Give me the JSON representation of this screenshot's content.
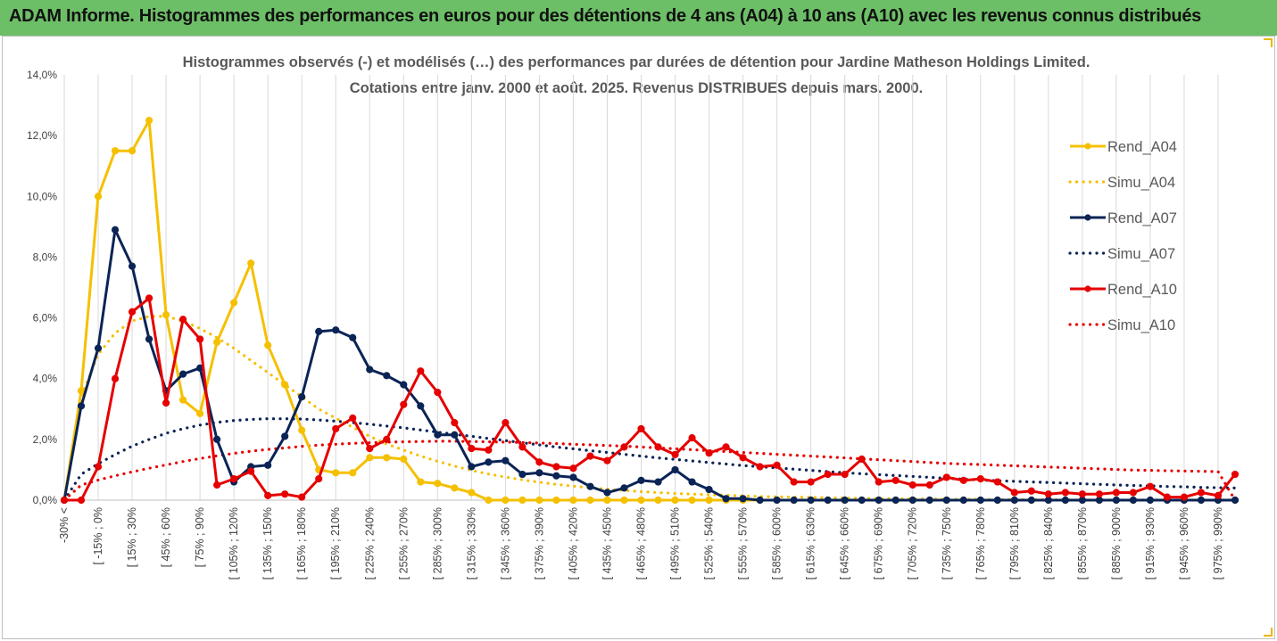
{
  "banner": {
    "title": "ADAM Informe. Histogrammes des performances en euros pour des détentions de 4 ans (A04) à 10 ans (A10) avec les revenus connus distribués",
    "background": "#6dbf67"
  },
  "chart_data": {
    "type": "line",
    "title": "Histogrammes observés (-) et modélisés (…) des performances par durées de détention pour Jardine Matheson Holdings Limited.",
    "subtitle": "Cotations entre janv. 2000 et août. 2025. Revenus DISTRIBUES depuis mars. 2000.",
    "xlabel": "",
    "ylabel": "",
    "ylim": [
      0,
      14
    ],
    "y_ticks": [
      "0,0%",
      "2,0%",
      "4,0%",
      "6,0%",
      "8,0%",
      "10,0%",
      "12,0%",
      "14,0%"
    ],
    "grid": "vertical",
    "legend_position": "right",
    "x_tick_labels": [
      "-30% <",
      "[ -15% ; 0%",
      "[ 15% ; 30%",
      "[ 45% ; 60%",
      "[ 75% ; 90%",
      "[ 105% ; 120%",
      "[ 135% ; 150%",
      "[ 165% ; 180%",
      "[ 195% ; 210%",
      "[ 225% ; 240%",
      "[ 255% ; 270%",
      "[ 285% ; 300%",
      "[ 315% ; 330%",
      "[ 345% ; 360%",
      "[ 375% ; 390%",
      "[ 405% ; 420%",
      "[ 435% ; 450%",
      "[ 465% ; 480%",
      "[ 495% ; 510%",
      "[ 525% ; 540%",
      "[ 555% ; 570%",
      "[ 585% ; 600%",
      "[ 615% ; 630%",
      "[ 645% ; 660%",
      "[ 675% ; 690%",
      "[ 705% ; 720%",
      "[ 735% ; 750%",
      "[ 765% ; 780%",
      "[ 795% ; 810%",
      "[ 825% ; 840%",
      "[ 855% ; 870%",
      "[ 885% ; 900%",
      "[ 915% ; 930%",
      "[ 945% ; 960%",
      "[ 975% ; 990%"
    ],
    "n_points": 70,
    "series": [
      {
        "name": "Rend_A04",
        "color": "#f5c000",
        "style": "solid",
        "markers": true,
        "values": [
          0.0,
          3.6,
          10.0,
          11.5,
          11.5,
          12.5,
          6.1,
          3.3,
          2.85,
          5.2,
          6.5,
          7.8,
          5.1,
          3.8,
          2.3,
          1.0,
          0.9,
          0.9,
          1.4,
          1.4,
          1.35,
          0.6,
          0.55,
          0.4,
          0.25,
          0.0,
          0.0,
          0.0,
          0.0,
          0.0,
          0.0,
          0.0,
          0.0,
          0.0,
          0.0,
          0.0,
          0.0,
          0.0,
          0.0,
          0.0,
          0.0,
          0.0,
          0.0,
          0.0,
          0.0,
          0.0,
          0.0,
          0.0,
          0.0,
          0.0,
          0.0,
          0.0,
          0.0,
          0.0,
          0.0,
          0.0,
          0.0,
          0.0,
          0.0,
          0.0,
          0.0,
          0.0,
          0.0,
          0.0,
          0.0,
          0.0,
          0.0,
          0.0,
          0.0,
          0.0
        ]
      },
      {
        "name": "Simu_A04",
        "color": "#f5c000",
        "style": "dotted",
        "markers": false,
        "values": [
          0.0,
          3.4,
          4.8,
          5.5,
          5.9,
          6.05,
          6.05,
          5.9,
          5.65,
          5.35,
          5.0,
          4.6,
          4.2,
          3.8,
          3.4,
          3.0,
          2.7,
          2.4,
          2.1,
          1.85,
          1.65,
          1.45,
          1.28,
          1.12,
          0.98,
          0.86,
          0.76,
          0.67,
          0.59,
          0.52,
          0.46,
          0.41,
          0.36,
          0.32,
          0.28,
          0.25,
          0.22,
          0.2,
          0.18,
          0.16,
          0.14,
          0.12,
          0.11,
          0.1,
          0.09,
          0.08,
          0.07,
          0.06,
          0.05,
          0.05,
          0.04,
          0.04,
          0.03,
          0.03,
          0.03,
          0.02,
          0.02,
          0.02,
          0.02,
          0.01,
          0.01,
          0.01,
          0.01,
          0.01,
          0.01,
          0.01,
          0.01,
          0.0,
          0.0,
          0.0
        ]
      },
      {
        "name": "Rend_A07",
        "color": "#0b2456",
        "style": "solid",
        "markers": true,
        "values": [
          0.0,
          3.1,
          5.0,
          8.9,
          7.7,
          5.3,
          3.6,
          4.15,
          4.35,
          2.0,
          0.6,
          1.1,
          1.15,
          2.1,
          3.4,
          5.55,
          5.6,
          5.35,
          4.3,
          4.1,
          3.8,
          3.1,
          2.15,
          2.15,
          1.1,
          1.25,
          1.3,
          0.85,
          0.9,
          0.8,
          0.75,
          0.45,
          0.25,
          0.4,
          0.65,
          0.6,
          1.0,
          0.6,
          0.35,
          0.05,
          0.05,
          0.0,
          0.0,
          0.0,
          0.0,
          0.0,
          0.0,
          0.0,
          0.0,
          0.0,
          0.0,
          0.0,
          0.0,
          0.0,
          0.0,
          0.0,
          0.0,
          0.0,
          0.0,
          0.0,
          0.0,
          0.0,
          0.0,
          0.0,
          0.0,
          0.0,
          0.0,
          0.0,
          0.0,
          0.0
        ]
      },
      {
        "name": "Simu_A07",
        "color": "#0b2456",
        "style": "dotted",
        "markers": false,
        "values": [
          0.0,
          0.85,
          1.2,
          1.5,
          1.78,
          2.0,
          2.2,
          2.35,
          2.47,
          2.56,
          2.62,
          2.66,
          2.68,
          2.68,
          2.67,
          2.64,
          2.6,
          2.55,
          2.5,
          2.44,
          2.38,
          2.31,
          2.24,
          2.17,
          2.1,
          2.03,
          1.96,
          1.89,
          1.82,
          1.75,
          1.69,
          1.63,
          1.57,
          1.51,
          1.45,
          1.39,
          1.34,
          1.29,
          1.24,
          1.19,
          1.14,
          1.1,
          1.06,
          1.02,
          0.98,
          0.94,
          0.9,
          0.87,
          0.84,
          0.81,
          0.78,
          0.75,
          0.72,
          0.69,
          0.66,
          0.64,
          0.62,
          0.6,
          0.58,
          0.56,
          0.54,
          0.52,
          0.5,
          0.48,
          0.47,
          0.45,
          0.44,
          0.42,
          0.41,
          0.4
        ]
      },
      {
        "name": "Rend_A10",
        "color": "#e60000",
        "style": "solid",
        "markers": true,
        "values": [
          0.0,
          0.0,
          1.1,
          4.0,
          6.2,
          6.65,
          3.2,
          5.95,
          5.3,
          0.5,
          0.7,
          0.95,
          0.15,
          0.2,
          0.1,
          0.7,
          2.35,
          2.7,
          1.7,
          2.0,
          3.15,
          4.25,
          3.55,
          2.55,
          1.7,
          1.65,
          2.55,
          1.75,
          1.25,
          1.1,
          1.05,
          1.45,
          1.3,
          1.75,
          2.35,
          1.75,
          1.5,
          2.05,
          1.55,
          1.75,
          1.4,
          1.1,
          1.15,
          0.6,
          0.6,
          0.85,
          0.85,
          1.35,
          0.6,
          0.65,
          0.5,
          0.5,
          0.75,
          0.65,
          0.7,
          0.6,
          0.25,
          0.3,
          0.2,
          0.25,
          0.2,
          0.2,
          0.25,
          0.25,
          0.45,
          0.1,
          0.1,
          0.25,
          0.15,
          0.85
        ]
      },
      {
        "name": "Simu_A10",
        "color": "#e60000",
        "style": "dotted",
        "markers": false,
        "values": [
          0.0,
          0.5,
          0.66,
          0.8,
          0.93,
          1.05,
          1.16,
          1.27,
          1.37,
          1.46,
          1.54,
          1.61,
          1.67,
          1.72,
          1.77,
          1.81,
          1.84,
          1.87,
          1.89,
          1.91,
          1.92,
          1.93,
          1.94,
          1.94,
          1.93,
          1.92,
          1.91,
          1.9,
          1.88,
          1.86,
          1.84,
          1.82,
          1.8,
          1.78,
          1.75,
          1.72,
          1.69,
          1.66,
          1.63,
          1.6,
          1.57,
          1.54,
          1.51,
          1.48,
          1.45,
          1.42,
          1.39,
          1.36,
          1.33,
          1.3,
          1.27,
          1.24,
          1.21,
          1.19,
          1.17,
          1.15,
          1.13,
          1.11,
          1.09,
          1.07,
          1.05,
          1.03,
          1.01,
          0.99,
          0.98,
          0.97,
          0.96,
          0.95,
          0.94,
          0.0
        ]
      }
    ]
  }
}
